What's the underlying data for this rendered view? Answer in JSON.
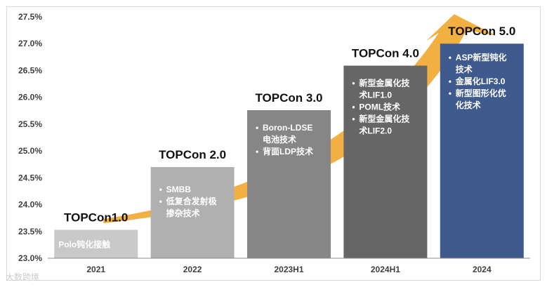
{
  "chart_data": {
    "type": "bar",
    "categories": [
      "2021",
      "2022",
      "2023H1",
      "2024H1",
      "2024"
    ],
    "values": [
      23.53,
      24.7,
      25.76,
      26.59,
      27.0
    ],
    "ylim": [
      23.0,
      27.5
    ],
    "yticks": [
      "23.0%",
      "23.5%",
      "24.0%",
      "24.5%",
      "25.0%",
      "25.5%",
      "26.0%",
      "26.5%",
      "27.0%",
      "27.5%"
    ],
    "ytick_values": [
      23.0,
      23.5,
      24.0,
      24.5,
      25.0,
      25.5,
      26.0,
      26.5,
      27.0,
      27.5
    ],
    "bar_titles": [
      "TOPCon1.0",
      "TOPCon 2.0",
      "TOPCon 3.0",
      "TOPCon 4.0",
      "TOPCon 5.0"
    ],
    "bar_colors": [
      "#c9c9c9",
      "#b0b0b0",
      "#868686",
      "#666666",
      "#3f5a8c"
    ],
    "bar_items": [
      [
        "Polo钝化接触"
      ],
      [
        "SMBB",
        "低复合发射极",
        "掺杂技术"
      ],
      [
        "Boron-LDSE",
        "电池技术",
        "背面LDP技术"
      ],
      [
        "新型金属化技",
        "术LIF1.0",
        "POML技术",
        "新型金属化技",
        "术LIF2.0"
      ],
      [
        "ASP新型钝化",
        "技术",
        "金属化LIF3.0",
        "新型图形化优",
        "化技术"
      ]
    ],
    "bar_item_bullets": [
      [
        false
      ],
      [
        true,
        true,
        false
      ],
      [
        true,
        false,
        true
      ],
      [
        true,
        false,
        true,
        true,
        false
      ],
      [
        true,
        false,
        true,
        true,
        false
      ]
    ],
    "arrow_color": "#f2b043",
    "title": "",
    "xlabel": "",
    "ylabel": ""
  },
  "watermark": "大数跨境"
}
